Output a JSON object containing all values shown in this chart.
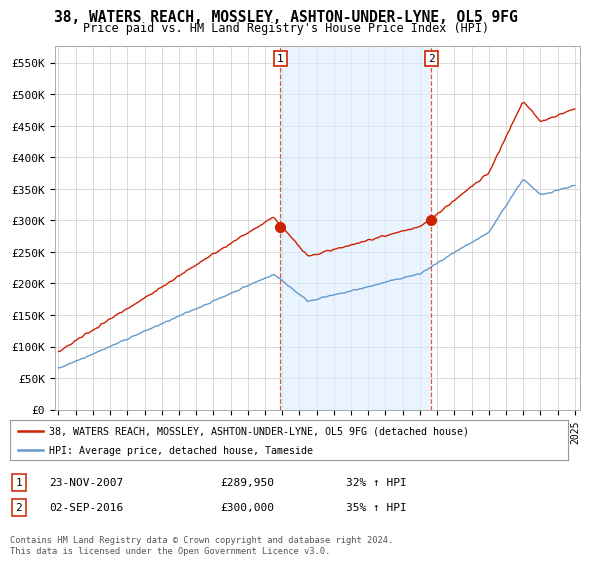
{
  "title": "38, WATERS REACH, MOSSLEY, ASHTON-UNDER-LYNE, OL5 9FG",
  "subtitle": "Price paid vs. HM Land Registry's House Price Index (HPI)",
  "xlim_start": 1994.8,
  "xlim_end": 2025.3,
  "ylim_bottom": 0,
  "ylim_top": 577000,
  "yticks": [
    0,
    50000,
    100000,
    150000,
    200000,
    250000,
    300000,
    350000,
    400000,
    450000,
    500000,
    550000
  ],
  "ytick_labels": [
    "£0",
    "£50K",
    "£100K",
    "£150K",
    "£200K",
    "£250K",
    "£300K",
    "£350K",
    "£400K",
    "£450K",
    "£500K",
    "£550K"
  ],
  "sale1_date": 2007.9,
  "sale1_price": 289950,
  "sale2_date": 2016.67,
  "sale2_price": 300000,
  "sale1_text": "23-NOV-2007",
  "sale1_price_text": "£289,950",
  "sale1_hpi_text": "32% ↑ HPI",
  "sale2_text": "02-SEP-2016",
  "sale2_price_text": "£300,000",
  "sale2_hpi_text": "35% ↑ HPI",
  "hpi_color": "#6699cc",
  "price_color": "#cc2200",
  "shade_color": "#ddeeff",
  "grid_color": "#cccccc",
  "bg_color": "#ffffff",
  "legend_line1": "38, WATERS REACH, MOSSLEY, ASHTON-UNDER-LYNE, OL5 9FG (detached house)",
  "legend_line2": "HPI: Average price, detached house, Tameside",
  "footer": "Contains HM Land Registry data © Crown copyright and database right 2024.\nThis data is licensed under the Open Government Licence v3.0."
}
